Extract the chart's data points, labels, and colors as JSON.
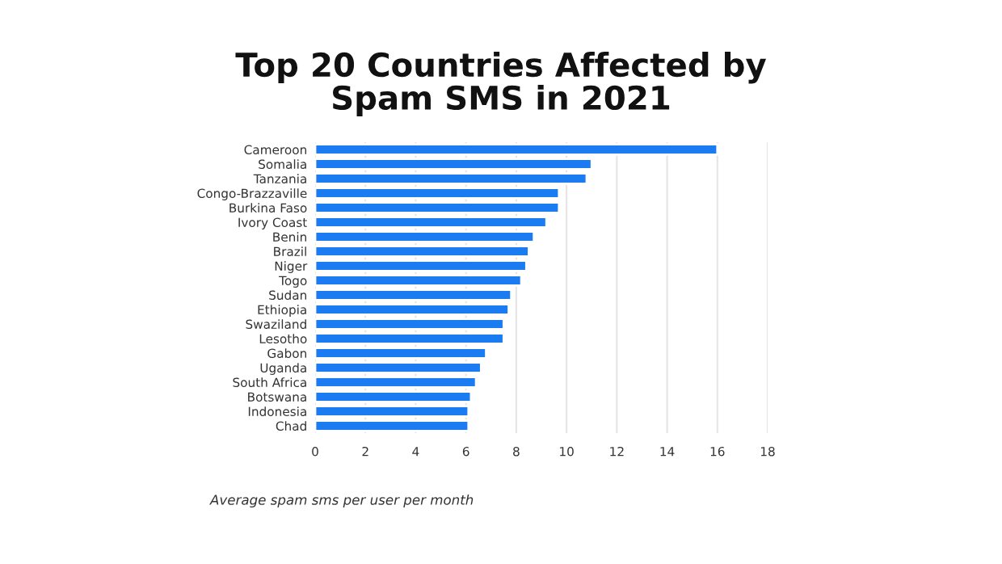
{
  "chart_data": {
    "type": "bar",
    "orientation": "horizontal",
    "title": "Top 20 Countries Affected by\nSpam SMS in 2021",
    "categories": [
      "Cameroon",
      "Somalia",
      "Tanzania",
      "Congo-Brazzaville",
      "Burkina Faso",
      "Ivory Coast",
      "Benin",
      "Brazil",
      "Niger",
      "Togo",
      "Sudan",
      "Ethiopia",
      "Swaziland",
      "Lesotho",
      "Gabon",
      "Uganda",
      "South Africa",
      "Botswana",
      "Indonesia",
      "Chad"
    ],
    "values": [
      16.0,
      11.0,
      10.8,
      9.7,
      9.7,
      9.2,
      8.7,
      8.5,
      8.4,
      8.2,
      7.8,
      7.7,
      7.5,
      7.5,
      6.8,
      6.6,
      6.4,
      6.2,
      6.1,
      6.1
    ],
    "color": "#1a7cf0",
    "xlim": [
      0,
      18
    ],
    "xticks": [
      0,
      2,
      4,
      6,
      8,
      10,
      12,
      14,
      16,
      18
    ],
    "grid": "x",
    "annotations": [
      "Average spam sms per user per month"
    ]
  }
}
